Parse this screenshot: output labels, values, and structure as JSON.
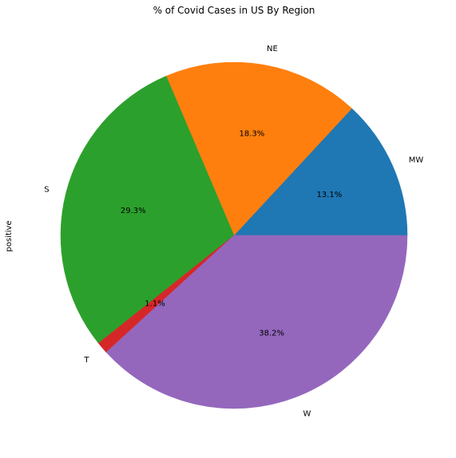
{
  "chart_data": {
    "type": "pie",
    "title": "% of Covid Cases in US By Region",
    "ylabel": "positive",
    "slices": [
      {
        "label": "MW",
        "percent": 13.1,
        "pct_label": "13.1%",
        "color": "#1f77b4"
      },
      {
        "label": "NE",
        "percent": 18.3,
        "pct_label": "18.3%",
        "color": "#ff7f0e"
      },
      {
        "label": "S",
        "percent": 29.3,
        "pct_label": "29.3%",
        "color": "#2ca02c"
      },
      {
        "label": "T",
        "percent": 1.1,
        "pct_label": "1.1%",
        "color": "#d62728"
      },
      {
        "label": "W",
        "percent": 38.2,
        "pct_label": "38.2%",
        "color": "#9467bd"
      }
    ],
    "start_angle_deg": 0,
    "direction": "counterclockwise"
  }
}
